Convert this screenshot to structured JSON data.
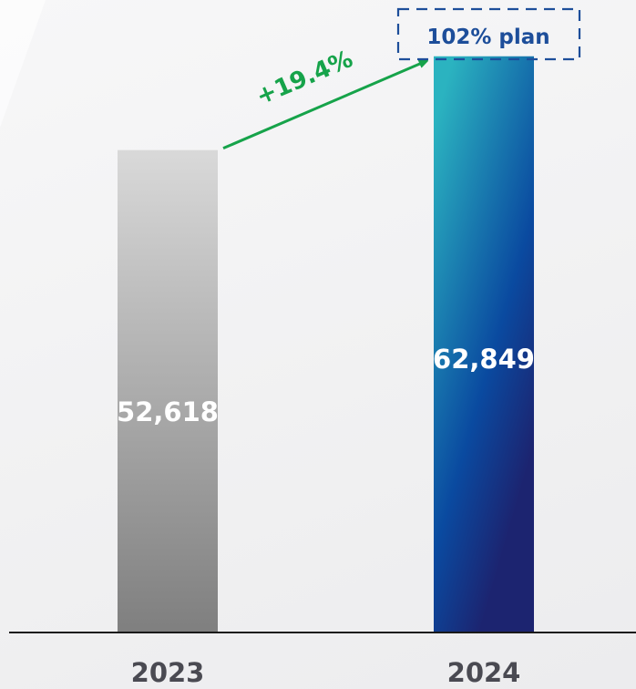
{
  "chart_data": {
    "type": "bar",
    "categories": [
      "2023",
      "2024"
    ],
    "values": [
      52618,
      62849
    ],
    "value_labels": [
      "52,618",
      "62,849"
    ],
    "growth_label": "+19.4%",
    "plan_label": "102% plan",
    "title": "",
    "xlabel": "",
    "ylabel": "",
    "ylim": [
      0,
      67000
    ],
    "grid": false,
    "legend": "none"
  },
  "colors": {
    "bar_2023_top": "#d9d9d9",
    "bar_2023_bottom": "#7f7f7f",
    "bar_2024_top": "#2bb3c0",
    "bar_2024_mid": "#0a4aa0",
    "bar_2024_bottom": "#1c2470",
    "growth_arrow": "#16a34a",
    "plan_box": "#1d4e9a",
    "axis": "#1a1a1a",
    "category_text": "#4a4a52",
    "value_text": "#ffffff"
  }
}
